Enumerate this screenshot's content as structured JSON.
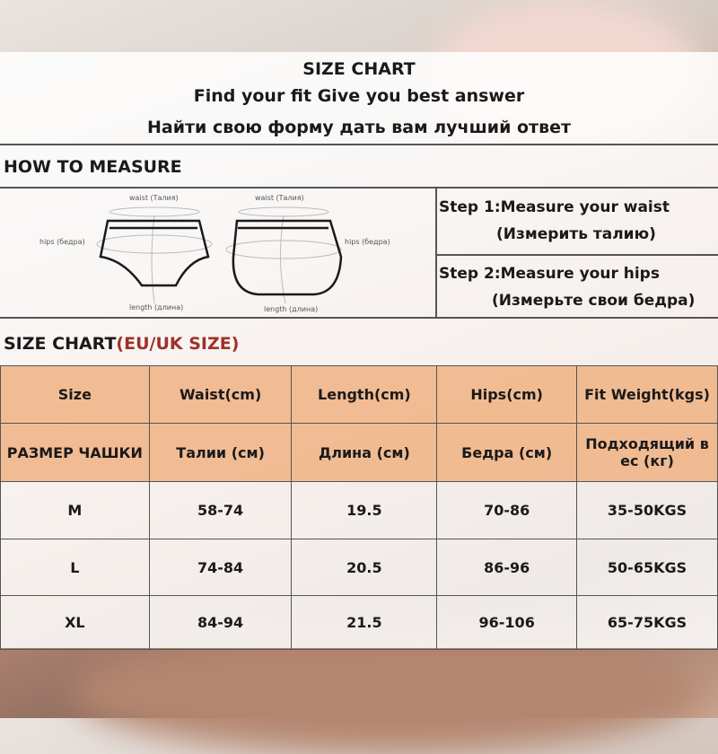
{
  "header": {
    "title": "SIZE CHART",
    "subtitle_en": "Find your fit Give you best answer",
    "subtitle_ru": "Найти свою форму дать вам лучший ответ"
  },
  "measure": {
    "heading": "HOW TO MEASURE",
    "labels": {
      "waist": "waist (Талия)",
      "hips": "hips (бедра)",
      "length": "length (длина)"
    },
    "steps": [
      {
        "en": "Step 1:Measure your waist",
        "ru": "(Измерить талию)"
      },
      {
        "en": "Step 2:Measure your hips",
        "ru": "(Измерьте свои бедра)"
      }
    ]
  },
  "chart": {
    "heading": "SIZE CHART",
    "heading_accent": "(EU/UK SIZE)",
    "accent_color": "#a0302a",
    "header_color": "#f0b282",
    "headers_en": [
      "Size",
      "Waist(cm)",
      "Length(cm)",
      "Hips(cm)",
      "Fit  Weight(kgs)"
    ],
    "headers_ru": [
      "РАЗМЕР ЧАШКИ",
      "Талии (см)",
      "Длина (см)",
      "Бедра (см)",
      "Подходящий в ес (кг)"
    ],
    "rows": [
      [
        "M",
        "58-74",
        "19.5",
        "70-86",
        "35-50KGS"
      ],
      [
        "L",
        "74-84",
        "20.5",
        "86-96",
        "50-65KGS"
      ],
      [
        "XL",
        "84-94",
        "21.5",
        "96-106",
        "65-75KGS"
      ]
    ]
  }
}
